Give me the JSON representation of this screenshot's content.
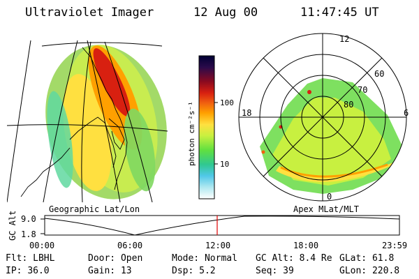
{
  "header": {
    "instrument": "Ultraviolet Imager",
    "date": "12 Aug 00",
    "time": "11:47:45 UT"
  },
  "geo_panel": {
    "caption": "Geographic Lat/Lon"
  },
  "colorbar": {
    "unit_label": "photon cm⁻²s⁻¹",
    "tick_labels": [
      "100",
      "10"
    ],
    "colors": [
      "#000033",
      "#2a0a4a",
      "#6a0a2a",
      "#a00018",
      "#d82010",
      "#f06010",
      "#ffa000",
      "#ffe040",
      "#c8f040",
      "#60e040",
      "#30c890",
      "#50c8e8",
      "#b0e8f0",
      "#ffffff"
    ]
  },
  "apex_panel": {
    "caption": "Apex MLat/MLT",
    "mlt_labels": {
      "top": "12",
      "left": "18",
      "right": "6",
      "bottom": "0"
    },
    "lat_labels": [
      "60",
      "70",
      "80"
    ]
  },
  "altitude_strip": {
    "axis_label": "GC Alt",
    "y_ticks": [
      "9.0",
      "1.8"
    ],
    "x_ticks": [
      "00:00",
      "06:00",
      "12:00",
      "18:00",
      "23:59"
    ],
    "marker_color": "#e00000"
  },
  "status": {
    "row1": [
      {
        "key": "Flt:",
        "value": "LBHL"
      },
      {
        "key": "Door:",
        "value": "Open"
      },
      {
        "key": "Mode:",
        "value": "Normal"
      },
      {
        "key": "GC Alt:",
        "value": "8.4 Re"
      },
      {
        "key": "GLat:",
        "value": "61.8"
      }
    ],
    "row2": [
      {
        "key": "IP:",
        "value": "36.0"
      },
      {
        "key": "Gain:",
        "value": "13"
      },
      {
        "key": "Dsp:",
        "value": "5.2"
      },
      {
        "key": "Seq:",
        "value": "39"
      },
      {
        "key": "GLon:",
        "value": "220.8"
      }
    ]
  }
}
